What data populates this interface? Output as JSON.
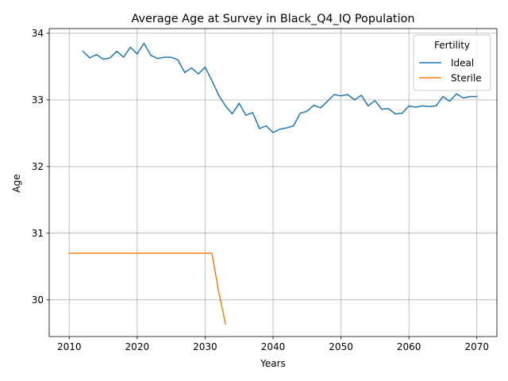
{
  "chart_data": {
    "type": "line",
    "title": "Average Age at Survey in Black_Q4_IQ Population",
    "xlabel": "Years",
    "ylabel": "Age",
    "xlim": [
      2007.05,
      2072.95
    ],
    "ylim": [
      29.45,
      34.07
    ],
    "x_ticks": [
      2010,
      2020,
      2030,
      2040,
      2050,
      2060,
      2070
    ],
    "y_ticks": [
      30,
      31,
      32,
      33,
      34
    ],
    "grid": true,
    "legend": {
      "title": "Fertility",
      "placement": "upper-right"
    },
    "series": [
      {
        "name": "Ideal",
        "color": "#1f77b4",
        "x": [
          2012,
          2013,
          2014,
          2015,
          2016,
          2017,
          2018,
          2019,
          2020,
          2021,
          2022,
          2023,
          2024,
          2025,
          2026,
          2027,
          2028,
          2029,
          2030,
          2031,
          2032,
          2033,
          2034,
          2035,
          2036,
          2037,
          2038,
          2039,
          2040,
          2041,
          2042,
          2043,
          2044,
          2045,
          2046,
          2047,
          2048,
          2049,
          2050,
          2051,
          2052,
          2053,
          2054,
          2055,
          2056,
          2057,
          2058,
          2059,
          2060,
          2061,
          2062,
          2063,
          2064,
          2065,
          2066,
          2067,
          2068,
          2069,
          2070
        ],
        "values": [
          33.73,
          33.63,
          33.68,
          33.61,
          33.63,
          33.73,
          33.64,
          33.79,
          33.69,
          33.85,
          33.67,
          33.62,
          33.64,
          33.64,
          33.6,
          33.41,
          33.48,
          33.39,
          33.49,
          33.29,
          33.07,
          32.91,
          32.79,
          32.95,
          32.77,
          32.81,
          32.57,
          32.61,
          32.51,
          32.56,
          32.58,
          32.61,
          32.8,
          32.83,
          32.92,
          32.88,
          32.98,
          33.08,
          33.06,
          33.08,
          33.0,
          33.07,
          32.91,
          32.99,
          32.86,
          32.87,
          32.79,
          32.8,
          32.91,
          32.89,
          32.91,
          32.9,
          32.91,
          33.05,
          32.98,
          33.09,
          33.03,
          33.05,
          33.05
        ]
      },
      {
        "name": "Sterile",
        "color": "#ff7f0e",
        "x": [
          2010,
          2011,
          2012,
          2013,
          2014,
          2015,
          2016,
          2017,
          2018,
          2019,
          2020,
          2021,
          2022,
          2023,
          2024,
          2025,
          2026,
          2027,
          2028,
          2029,
          2030,
          2031,
          2032,
          2033
        ],
        "values": [
          30.7,
          30.7,
          30.7,
          30.7,
          30.7,
          30.7,
          30.7,
          30.7,
          30.7,
          30.7,
          30.7,
          30.7,
          30.7,
          30.7,
          30.7,
          30.7,
          30.7,
          30.7,
          30.7,
          30.7,
          30.7,
          30.7,
          30.12,
          29.64
        ]
      }
    ]
  }
}
